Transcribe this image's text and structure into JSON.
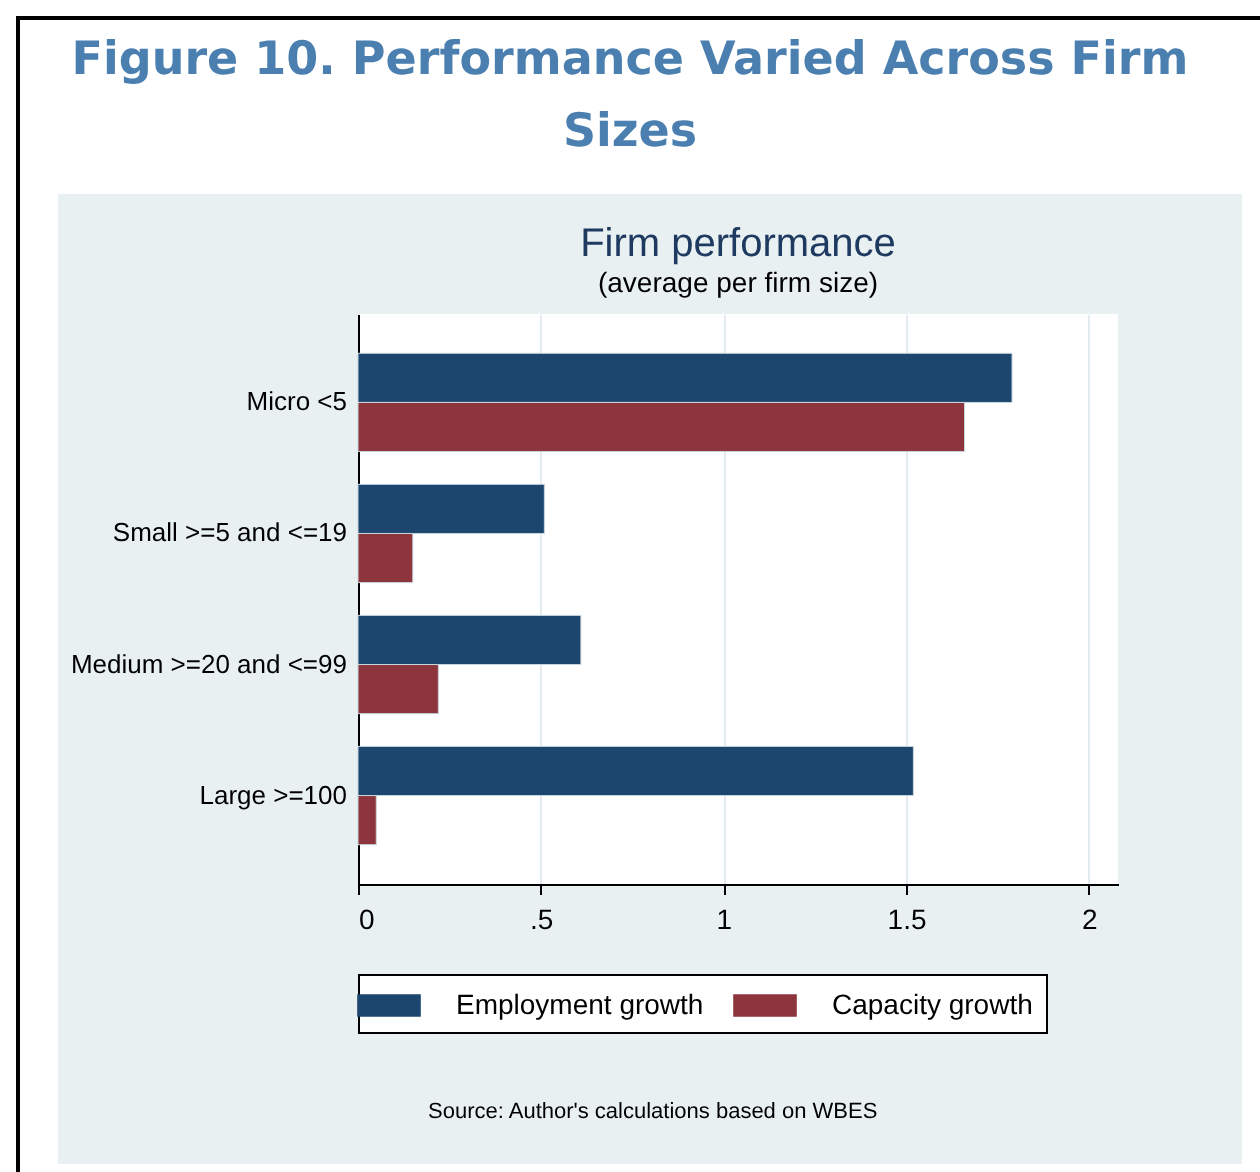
{
  "chart_data": {
    "type": "bar",
    "orientation": "horizontal",
    "title": "Figure 10. Performance Varied Across Firm Sizes",
    "subtitle": "Firm performance",
    "annotations": [
      "(average per firm size)",
      "Source: Author's calculations based on WBES"
    ],
    "categories": [
      "Micro <5",
      "Small >=5 and <=19",
      "Medium >=20 and <=99",
      "Large >=100"
    ],
    "series": [
      {
        "name": "Employment growth",
        "color": "#1c466e",
        "values": [
          1.79,
          0.51,
          0.61,
          1.52
        ]
      },
      {
        "name": "Capacity growth",
        "color": "#8c353d",
        "values": [
          1.66,
          0.15,
          0.22,
          0.05
        ]
      }
    ],
    "xlim": [
      0,
      2.08
    ],
    "xticks": [
      0,
      {
        "value": 0.5,
        "label": ".5"
      },
      1,
      1.5,
      2
    ],
    "grid": "x",
    "legend": "bottom"
  }
}
